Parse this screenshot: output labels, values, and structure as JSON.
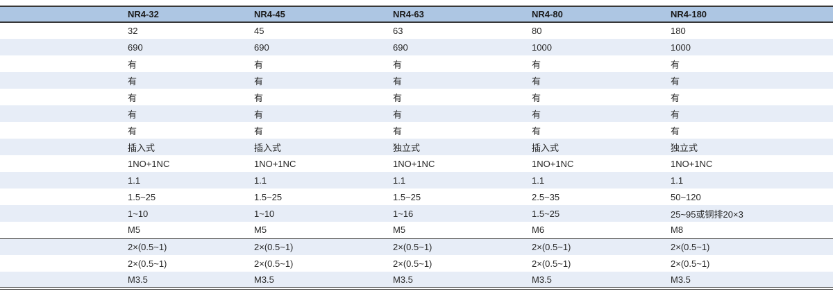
{
  "colors": {
    "header_bg": "#adc6e3",
    "stripe_bg": "#e7edf7",
    "row_bg": "#ffffff",
    "border_dark": "#383838",
    "text": "#262626",
    "header_text": "#1a1a1a"
  },
  "table": {
    "header": [
      "",
      "NR4-32",
      "NR4-45",
      "NR4-63",
      "NR4-80",
      "NR4-180"
    ],
    "section_separator_after_row": 13,
    "rows": [
      [
        "",
        "32",
        "45",
        "63",
        "80",
        "180"
      ],
      [
        "",
        "690",
        "690",
        "690",
        "1000",
        "1000"
      ],
      [
        "",
        "有",
        "有",
        "有",
        "有",
        "有"
      ],
      [
        "",
        "有",
        "有",
        "有",
        "有",
        "有"
      ],
      [
        "",
        "有",
        "有",
        "有",
        "有",
        "有"
      ],
      [
        "",
        "有",
        "有",
        "有",
        "有",
        "有"
      ],
      [
        "",
        "有",
        "有",
        "有",
        "有",
        "有"
      ],
      [
        "",
        "插入式",
        "插入式",
        "独立式",
        "插入式",
        "独立式"
      ],
      [
        "",
        "1NO+1NC",
        "1NO+1NC",
        "1NO+1NC",
        "1NO+1NC",
        "1NO+1NC"
      ],
      [
        "",
        "1.1",
        "1.1",
        "1.1",
        "1.1",
        "1.1"
      ],
      [
        "",
        "1.5~25",
        "1.5~25",
        "1.5~25",
        "2.5~35",
        "50~120"
      ],
      [
        "",
        "1~10",
        "1~10",
        "1~16",
        "1.5~25",
        "25~95或铜排20×3"
      ],
      [
        "",
        "M5",
        "M5",
        "M5",
        "M6",
        "M8"
      ],
      [
        "",
        "2×(0.5~1)",
        "2×(0.5~1)",
        "2×(0.5~1)",
        "2×(0.5~1)",
        "2×(0.5~1)"
      ],
      [
        "",
        "2×(0.5~1)",
        "2×(0.5~1)",
        "2×(0.5~1)",
        "2×(0.5~1)",
        "2×(0.5~1)"
      ],
      [
        "",
        "M3.5",
        "M3.5",
        "M3.5",
        "M3.5",
        "M3.5"
      ]
    ]
  }
}
